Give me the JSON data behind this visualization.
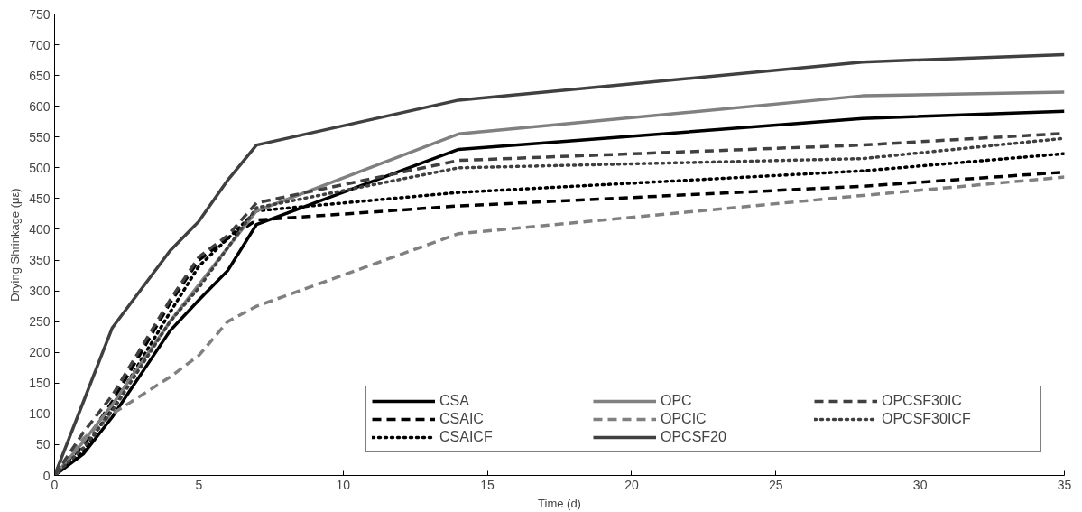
{
  "chart_data": {
    "type": "line",
    "xlabel": "Time (d)",
    "ylabel": "Drying Shrinkage (με)",
    "x": [
      0,
      1,
      2,
      4,
      5,
      6,
      7,
      14,
      28,
      35
    ],
    "xlim": [
      0,
      35
    ],
    "xticks": [
      0,
      5,
      10,
      15,
      20,
      25,
      30,
      35
    ],
    "ylim": [
      0,
      750
    ],
    "yticks": [
      0,
      50,
      100,
      150,
      200,
      250,
      300,
      350,
      400,
      450,
      500,
      550,
      600,
      650,
      700,
      750
    ],
    "grid": false,
    "legend": "bottom right",
    "marker": "none",
    "series": [
      {
        "name": "CSA",
        "color": "#000000",
        "line_style": "solid",
        "values": [
          0,
          35,
          95,
          235,
          285,
          333,
          408,
          530,
          580,
          592
        ]
      },
      {
        "name": "CSAIC",
        "color": "#000000",
        "line_style": "dashed",
        "values": [
          0,
          50,
          120,
          280,
          350,
          385,
          415,
          438,
          470,
          493
        ]
      },
      {
        "name": "CSAICF",
        "color": "#000000",
        "line_style": "dotted",
        "values": [
          0,
          40,
          110,
          265,
          340,
          385,
          430,
          460,
          495,
          523
        ]
      },
      {
        "name": "OPC",
        "color": "#808080",
        "line_style": "solid",
        "values": [
          0,
          55,
          115,
          250,
          310,
          370,
          430,
          555,
          617,
          623
        ]
      },
      {
        "name": "OPCIC",
        "color": "#808080",
        "line_style": "dashed",
        "values": [
          0,
          60,
          100,
          160,
          195,
          250,
          275,
          393,
          455,
          485
        ]
      },
      {
        "name": "OPCSF20",
        "color": "#404040",
        "line_style": "solid",
        "values": [
          0,
          120,
          240,
          365,
          413,
          480,
          537,
          610,
          672,
          684
        ]
      },
      {
        "name": "OPCSF30IC",
        "color": "#404040",
        "line_style": "dashed",
        "values": [
          0,
          70,
          130,
          285,
          355,
          390,
          443,
          512,
          537,
          556
        ]
      },
      {
        "name": "OPCSF30ICF",
        "color": "#404040",
        "line_style": "dotted",
        "values": [
          0,
          45,
          105,
          250,
          305,
          370,
          435,
          500,
          515,
          548
        ]
      }
    ]
  }
}
